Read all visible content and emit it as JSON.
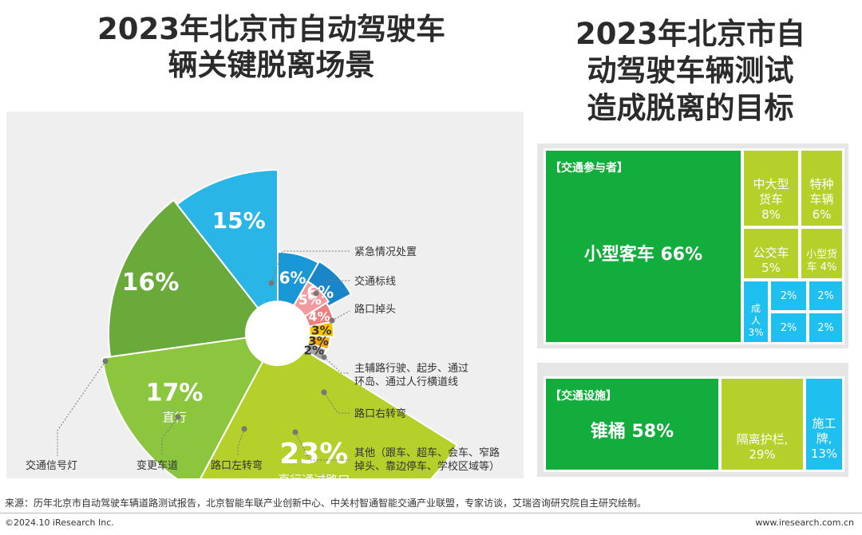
{
  "titles": {
    "left": [
      "2023年北京市自动驾驶车",
      "辆关键脱离场景"
    ],
    "right": [
      "2023年北京市自",
      "动驾驶车辆测试",
      "造成脱离的目标"
    ]
  },
  "chart_data": [
    {
      "type": "pie",
      "variant": "rose",
      "title": "2023年北京市自动驾驶车辆关键脱离场景",
      "categories": [
        "直行通过路口",
        "直行",
        "交通信号灯",
        "变更车道",
        "路口左转弯",
        "其他（跟车、超车、会车、窄路掉头、靠边停车、学校区域等）",
        "路口右转弯",
        "主辅路行驶、起步、通过环岛、通过人行横道线",
        "路口掉头",
        "交通标线",
        "紧急情况处置"
      ],
      "values": [
        23,
        17,
        16,
        15,
        6,
        6,
        5,
        4,
        3,
        3,
        2
      ],
      "value_labels": [
        "23%",
        "17%",
        "16%",
        "15%",
        "6%",
        "6%",
        "5%",
        "4%",
        "3%",
        "3%",
        "2%"
      ],
      "inner_labels": [
        "直行通过路口",
        "直行",
        "",
        "",
        "",
        "",
        "",
        "",
        "",
        "",
        ""
      ],
      "outer_labels": [
        "",
        "",
        "交通信号灯",
        "变更车道",
        "路口左转弯",
        "其他（跟车、超车、会车、窄路\n掉头、靠边停车、学校区域等）",
        "路口右转弯",
        "主辅路行驶、起步、通过\n环岛、通过人行横道线",
        "路口掉头",
        "交通标线",
        "紧急情况处置"
      ],
      "colors": [
        "#b5cf2b",
        "#8cc63f",
        "#6aaa3a",
        "#29b6e6",
        "#1a97d6",
        "#1a85c9",
        "#f39aa0",
        "#f08080",
        "#fbc000",
        "#f5a800",
        "#a6a6a6"
      ]
    },
    {
      "type": "table",
      "variant": "treemap",
      "title": "2023年北京市自动驾驶车辆测试造成脱离的目标",
      "groups": [
        {
          "name": "【交通参与者】",
          "items": [
            {
              "label": "小型客车",
              "value": 66,
              "text": "小型客车 66%"
            },
            {
              "label": "中大型货车",
              "value": 8,
              "text": "中大型\n货车\n8%"
            },
            {
              "label": "特种车辆",
              "value": 6,
              "text": "特种\n车辆\n6%"
            },
            {
              "label": "公交车",
              "value": 5,
              "text": "公交车\n5%"
            },
            {
              "label": "小型货车",
              "value": 4,
              "text": "小型货\n车 4%"
            },
            {
              "label": "成人",
              "value": 3,
              "text": "成\n人\n3%"
            },
            {
              "label": "",
              "value": 2,
              "text": "2%"
            },
            {
              "label": "",
              "value": 2,
              "text": "2%"
            },
            {
              "label": "",
              "value": 2,
              "text": "2%"
            },
            {
              "label": "",
              "value": 2,
              "text": "2%"
            }
          ]
        },
        {
          "name": "【交通设施】",
          "items": [
            {
              "label": "锥桶",
              "value": 58,
              "text": "锥桶 58%"
            },
            {
              "label": "隔离护栏",
              "value": 29,
              "text": "隔离护栏,\n29%"
            },
            {
              "label": "施工牌",
              "value": 13,
              "text": "施工\n牌,\n13%"
            }
          ]
        }
      ],
      "colors": {
        "dark_green": "#12ad3c",
        "yellow_green": "#b5cf2b",
        "light_blue": "#1fc0ef"
      }
    }
  ],
  "footer": {
    "source": "来源：历年北京市自动驾驶车辆道路测试报告，北京智能车联产业创新中心、中关村智通智能交通产业联盟，专家访谈，艾瑞咨询研究院自主研究绘制。",
    "copyright": "©2024.10 iResearch Inc.",
    "website": "www.iresearch.com.cn"
  }
}
